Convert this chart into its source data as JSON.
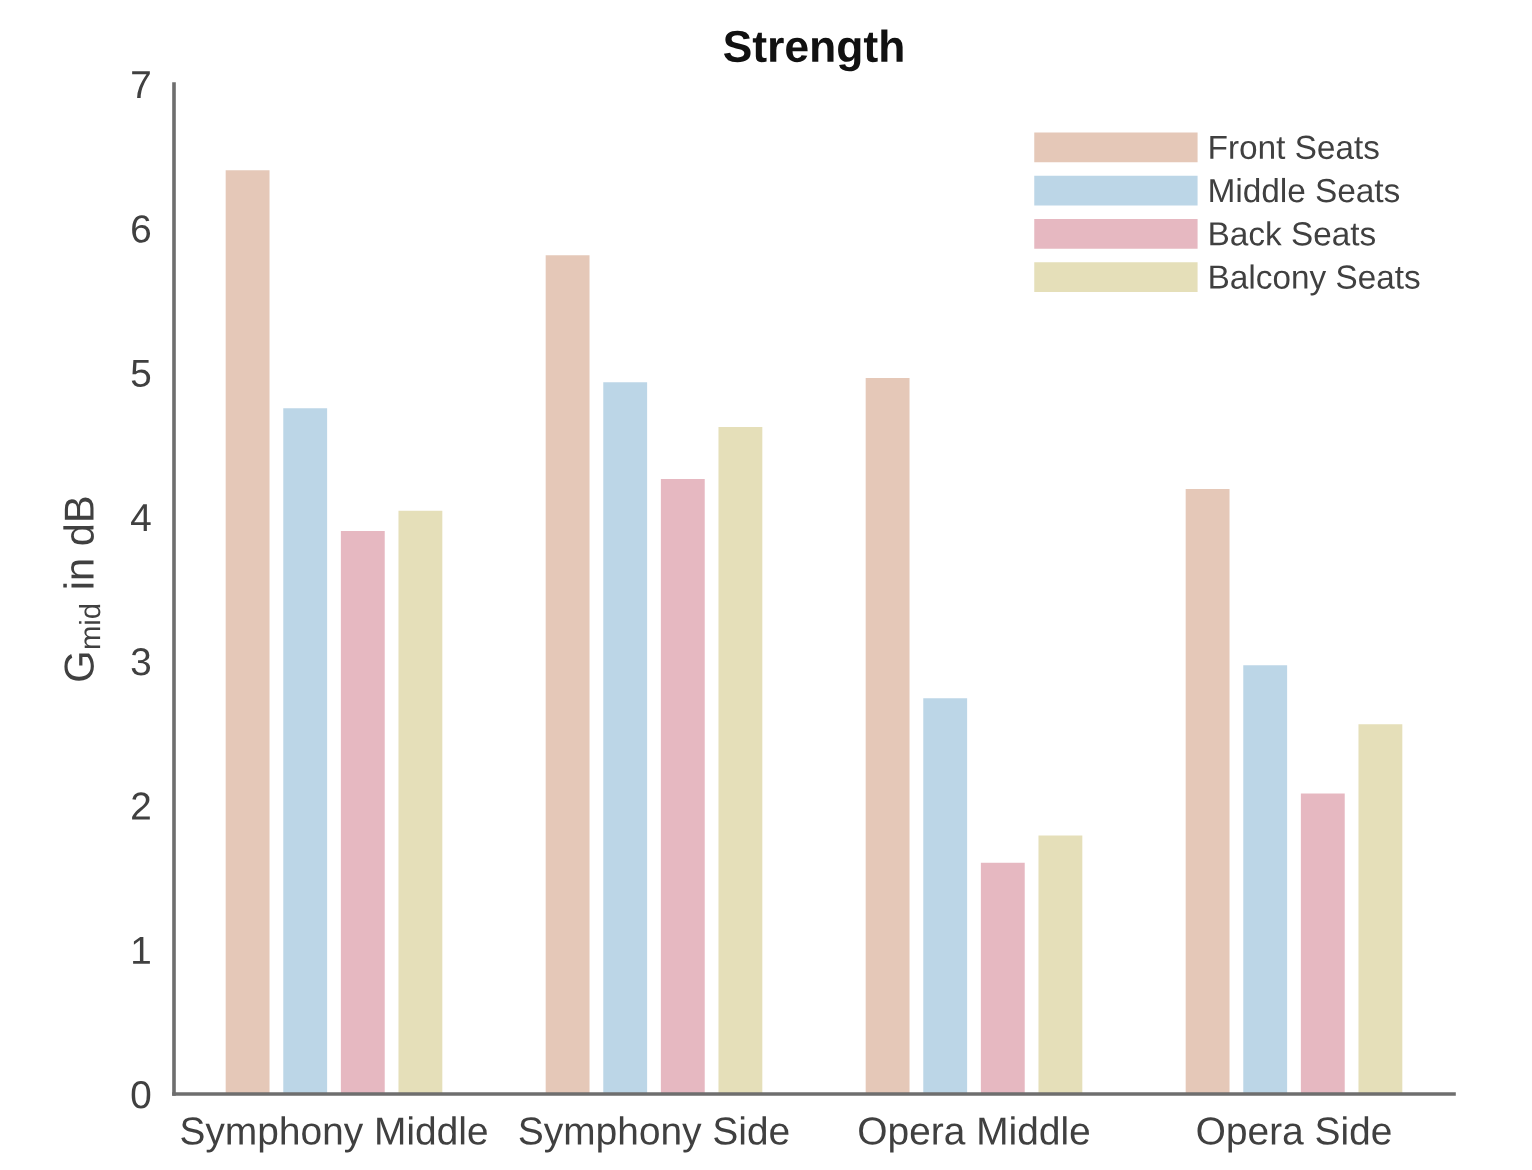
{
  "chart_data": {
    "type": "bar",
    "title": "Strength",
    "ylabel": "G$_{mid}$ in dB",
    "categories": [
      "Symphony Middle",
      "Symphony Side",
      "Opera Middle",
      "Opera Side"
    ],
    "series": [
      {
        "name": "Front Seats",
        "color": "#e5c8b8",
        "values": [
          6.41,
          5.82,
          4.97,
          4.2
        ]
      },
      {
        "name": "Middle Seats",
        "color": "#bcd6e7",
        "values": [
          4.76,
          4.94,
          2.75,
          2.98
        ]
      },
      {
        "name": "Back Seats",
        "color": "#e6b8c1",
        "values": [
          3.91,
          4.27,
          1.61,
          2.09
        ]
      },
      {
        "name": "Balcony Seats",
        "color": "#e5dfb9",
        "values": [
          4.05,
          4.63,
          1.8,
          2.57
        ]
      }
    ],
    "ylim": [
      0,
      7
    ],
    "yticks": [
      0,
      1,
      2,
      3,
      4,
      5,
      6,
      7
    ],
    "grid": false,
    "legend": "top right"
  }
}
